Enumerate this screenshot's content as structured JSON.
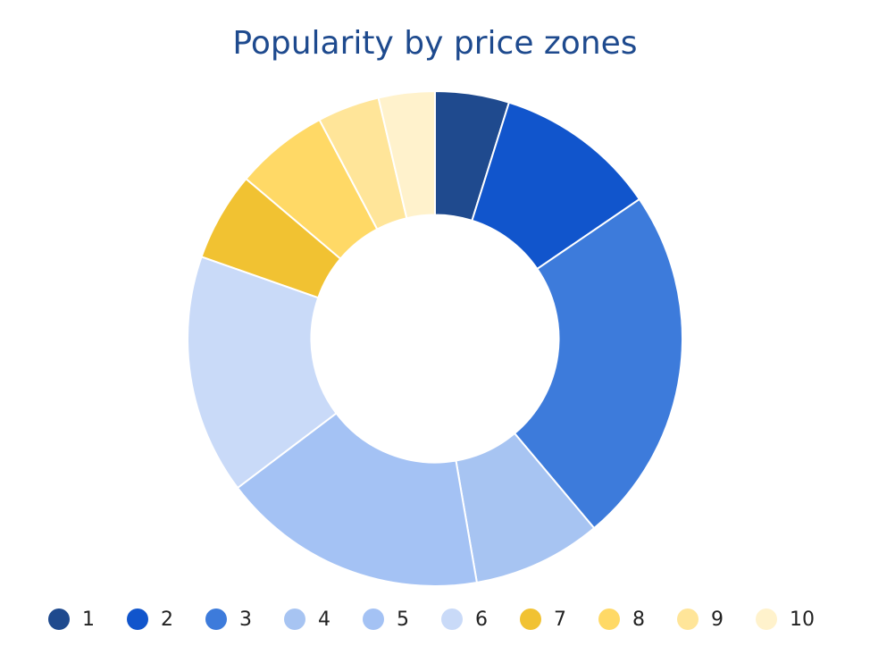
{
  "chart_data": {
    "type": "pie",
    "title": "Popularity by price zones",
    "hole": 0.5,
    "direction": "clockwise",
    "start": "top",
    "sort": false,
    "legend_position": "bottom",
    "slices": [
      {
        "label": "1",
        "value": 5.0,
        "color": "#1f4a8e"
      },
      {
        "label": "2",
        "value": 11.0,
        "color": "#1155cc"
      },
      {
        "label": "3",
        "value": 24.2,
        "color": "#3d7bdb"
      },
      {
        "label": "4",
        "value": 8.7,
        "color": "#a7c4f2"
      },
      {
        "label": "5",
        "value": 18.0,
        "color": "#a4c2f4"
      },
      {
        "label": "6",
        "value": 16.2,
        "color": "#c9daf8"
      },
      {
        "label": "7",
        "value": 6.0,
        "color": "#f1c232"
      },
      {
        "label": "8",
        "value": 6.3,
        "color": "#ffd966"
      },
      {
        "label": "9",
        "value": 4.2,
        "color": "#ffe599"
      },
      {
        "label": "10",
        "value": 3.8,
        "color": "#fff2cc"
      }
    ]
  }
}
